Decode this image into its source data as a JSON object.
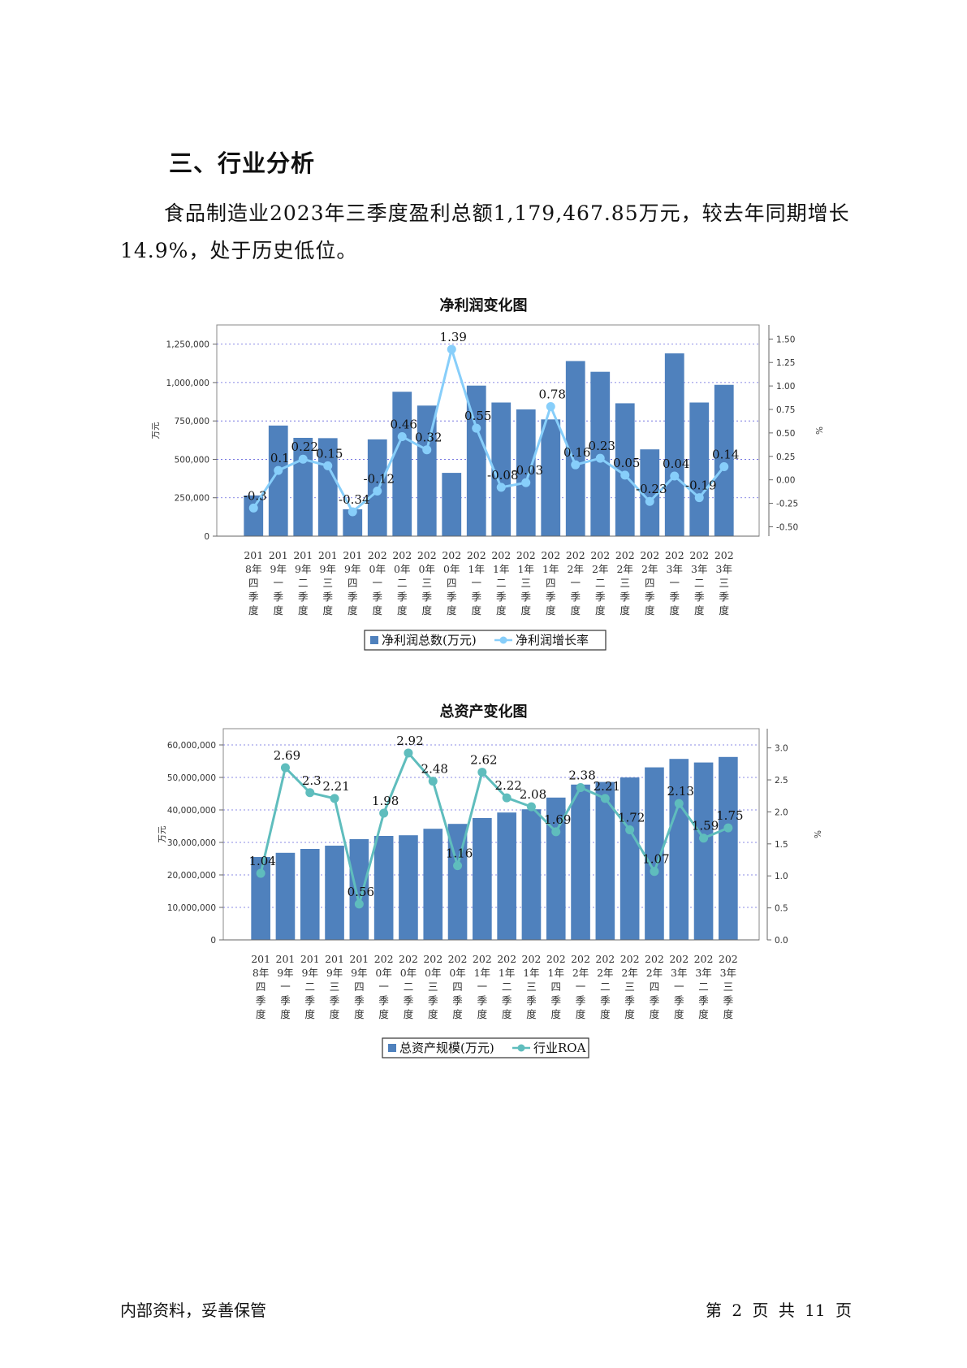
{
  "heading": "三、行业分析",
  "paragraph": "食品制造业2023年三季度盈利总额1,179,467.85万元，较去年同期增长14.9%，处于历史低位。",
  "footer": {
    "left": "内部资料，妥善保管",
    "right": "第 2 页   共 11 页"
  },
  "chart_data": [
    {
      "type": "bar",
      "title": "净利润变化图",
      "categories": [
        "2018年四季度",
        "2019年一季度",
        "2019年二季度",
        "2019年三季度",
        "2019年四季度",
        "2020年一季度",
        "2020年二季度",
        "2020年三季度",
        "2020年四季度",
        "2021年一季度",
        "2021年二季度",
        "2021年三季度",
        "2021年四季度",
        "2022年一季度",
        "2022年二季度",
        "2022年三季度",
        "2022年四季度",
        "2023年一季度",
        "2023年二季度",
        "2023年三季度"
      ],
      "category_lines": [
        [
          "201",
          "8年",
          "四",
          "季",
          "度"
        ],
        [
          "201",
          "9年",
          "一",
          "季",
          "度"
        ],
        [
          "201",
          "9年",
          "二",
          "季",
          "度"
        ],
        [
          "201",
          "9年",
          "三",
          "季",
          "度"
        ],
        [
          "201",
          "9年",
          "四",
          "季",
          "度"
        ],
        [
          "202",
          "0年",
          "一",
          "季",
          "度"
        ],
        [
          "202",
          "0年",
          "二",
          "季",
          "度"
        ],
        [
          "202",
          "0年",
          "三",
          "季",
          "度"
        ],
        [
          "202",
          "0年",
          "四",
          "季",
          "度"
        ],
        [
          "202",
          "1年",
          "一",
          "季",
          "度"
        ],
        [
          "202",
          "1年",
          "二",
          "季",
          "度"
        ],
        [
          "202",
          "1年",
          "三",
          "季",
          "度"
        ],
        [
          "202",
          "1年",
          "四",
          "季",
          "度"
        ],
        [
          "202",
          "2年",
          "一",
          "季",
          "度"
        ],
        [
          "202",
          "2年",
          "二",
          "季",
          "度"
        ],
        [
          "202",
          "2年",
          "三",
          "季",
          "度"
        ],
        [
          "202",
          "2年",
          "四",
          "季",
          "度"
        ],
        [
          "202",
          "3年",
          "一",
          "季",
          "度"
        ],
        [
          "202",
          "3年",
          "二",
          "季",
          "度"
        ],
        [
          "202",
          "3年",
          "三",
          "季",
          "度"
        ]
      ],
      "series": [
        {
          "name": "净利润总数(万元)",
          "kind": "bar",
          "axis": "left",
          "color": "#4f81bd",
          "values": [
            265000,
            720000,
            640000,
            638000,
            175000,
            630000,
            940000,
            850000,
            412000,
            980000,
            870000,
            825000,
            760000,
            1140000,
            1070000,
            865000,
            565000,
            1190000,
            870000,
            985000
          ]
        },
        {
          "name": "净利润增长率",
          "kind": "line",
          "axis": "right",
          "color": "#87cefa",
          "values": [
            -0.3,
            0.1,
            0.22,
            0.15,
            -0.34,
            -0.12,
            0.46,
            0.32,
            1.39,
            0.55,
            -0.08,
            -0.03,
            0.78,
            0.16,
            0.23,
            0.05,
            -0.23,
            0.04,
            -0.19,
            0.14
          ]
        }
      ],
      "ylabel": "万元",
      "y2label": "%",
      "ylim": [
        0,
        1375000
      ],
      "y2lim": [
        -0.6,
        1.65
      ],
      "yticks": [
        0,
        250000,
        500000,
        750000,
        1000000,
        1250000
      ],
      "yticklabels": [
        "0",
        "250,000",
        "500,000",
        "750,000",
        "1,000,000",
        "1,250,000"
      ],
      "y2ticks": [
        -0.5,
        -0.25,
        0,
        0.25,
        0.5,
        0.75,
        1,
        1.25,
        1.5
      ],
      "y2ticklabels": [
        "-0.50",
        "-0.25",
        "0.00",
        "0.25",
        "0.50",
        "0.75",
        "1.00",
        "1.25",
        "1.50"
      ],
      "legend": "bottom",
      "grid": true
    },
    {
      "type": "bar",
      "title": "总资产变化图",
      "categories": [
        "2018年四季度",
        "2019年一季度",
        "2019年二季度",
        "2019年三季度",
        "2019年四季度",
        "2020年一季度",
        "2020年二季度",
        "2020年三季度",
        "2020年四季度",
        "2021年一季度",
        "2021年二季度",
        "2021年三季度",
        "2021年四季度",
        "2022年一季度",
        "2022年二季度",
        "2022年三季度",
        "2022年四季度",
        "2023年一季度",
        "2023年二季度",
        "2023年三季度"
      ],
      "category_lines": [
        [
          "201",
          "8年",
          "四",
          "季",
          "度"
        ],
        [
          "201",
          "9年",
          "一",
          "季",
          "度"
        ],
        [
          "201",
          "9年",
          "二",
          "季",
          "度"
        ],
        [
          "201",
          "9年",
          "三",
          "季",
          "度"
        ],
        [
          "201",
          "9年",
          "四",
          "季",
          "度"
        ],
        [
          "202",
          "0年",
          "一",
          "季",
          "度"
        ],
        [
          "202",
          "0年",
          "二",
          "季",
          "度"
        ],
        [
          "202",
          "0年",
          "三",
          "季",
          "度"
        ],
        [
          "202",
          "0年",
          "四",
          "季",
          "度"
        ],
        [
          "202",
          "1年",
          "一",
          "季",
          "度"
        ],
        [
          "202",
          "1年",
          "二",
          "季",
          "度"
        ],
        [
          "202",
          "1年",
          "三",
          "季",
          "度"
        ],
        [
          "202",
          "1年",
          "四",
          "季",
          "度"
        ],
        [
          "202",
          "2年",
          "一",
          "季",
          "度"
        ],
        [
          "202",
          "2年",
          "二",
          "季",
          "度"
        ],
        [
          "202",
          "2年",
          "三",
          "季",
          "度"
        ],
        [
          "202",
          "2年",
          "四",
          "季",
          "度"
        ],
        [
          "202",
          "3年",
          "一",
          "季",
          "度"
        ],
        [
          "202",
          "3年",
          "二",
          "季",
          "度"
        ],
        [
          "202",
          "3年",
          "三",
          "季",
          "度"
        ]
      ],
      "series": [
        {
          "name": "总资产规模(万元)",
          "kind": "bar",
          "axis": "left",
          "color": "#4f81bd",
          "values": [
            25500000,
            26800000,
            28000000,
            29000000,
            31000000,
            32000000,
            32200000,
            34200000,
            35700000,
            37500000,
            39200000,
            40200000,
            43800000,
            47800000,
            48600000,
            50000000,
            53100000,
            55700000,
            54600000,
            56300000
          ]
        },
        {
          "name": "行业ROA",
          "kind": "line",
          "axis": "right",
          "color": "#5fbdbd",
          "values": [
            1.04,
            2.69,
            2.3,
            2.21,
            0.56,
            1.98,
            2.92,
            2.48,
            1.16,
            2.62,
            2.22,
            2.08,
            1.69,
            2.38,
            2.21,
            1.72,
            1.07,
            2.13,
            1.59,
            1.75
          ]
        }
      ],
      "ylabel": "万元",
      "y2label": "%",
      "ylim": [
        0,
        65000000
      ],
      "y2lim": [
        0,
        3.3
      ],
      "yticks": [
        0,
        10000000,
        20000000,
        30000000,
        40000000,
        50000000,
        60000000
      ],
      "yticklabels": [
        "0",
        "10,000,000",
        "20,000,000",
        "30,000,000",
        "40,000,000",
        "50,000,000",
        "60,000,000"
      ],
      "y2ticks": [
        0,
        0.5,
        1,
        1.5,
        2,
        2.5,
        3
      ],
      "y2ticklabels": [
        "0.0",
        "0.5",
        "1.0",
        "1.5",
        "2.0",
        "2.5",
        "3.0"
      ],
      "legend": "bottom",
      "grid": true
    }
  ]
}
